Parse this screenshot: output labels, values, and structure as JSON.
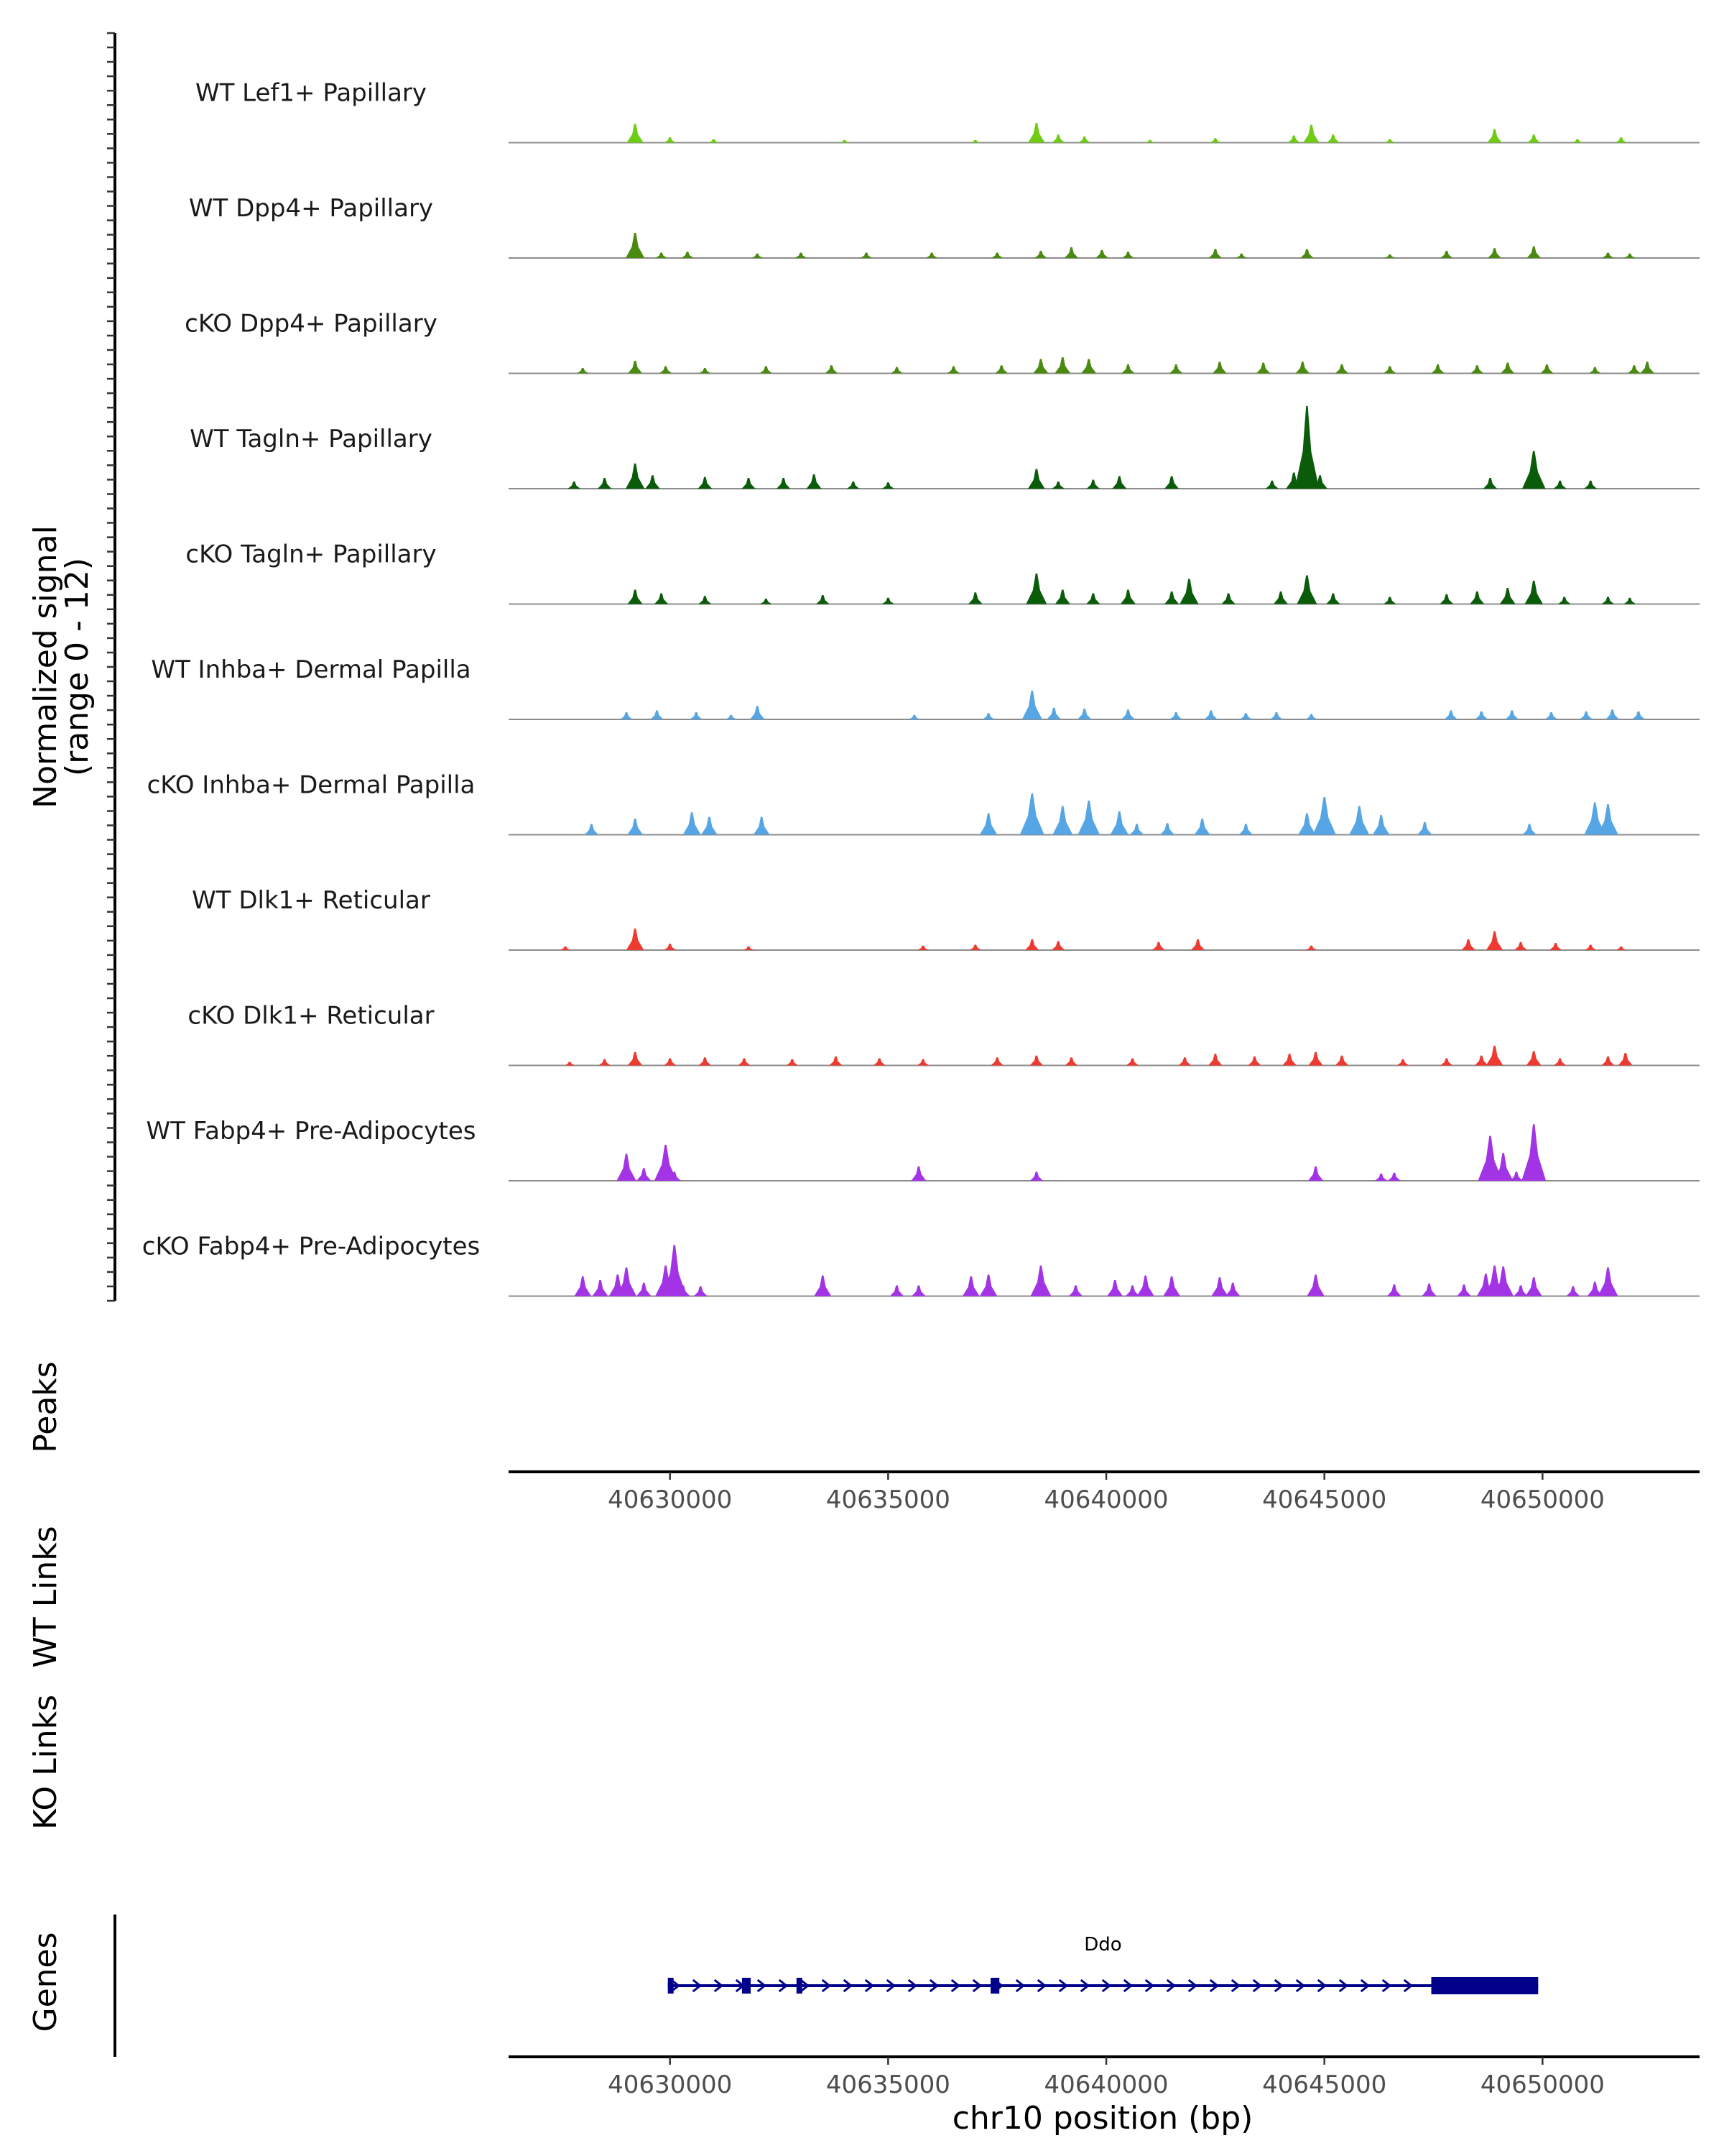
{
  "chart_data": {
    "type": "coverage",
    "chromosome": "chr10",
    "xlabel": "chr10 position (bp)",
    "xlim": [
      40626300,
      40653600
    ],
    "xticks": [
      40630000,
      40635000,
      40640000,
      40645000,
      40650000
    ],
    "xtick_labels": [
      "40630000",
      "40635000",
      "40640000",
      "40645000",
      "40650000"
    ],
    "ylabel_line1": "Normalized signal",
    "ylabel_line2": "(range 0 - 12)",
    "yrange": [
      0,
      12
    ],
    "tracks": [
      {
        "name": "WT Lef1+ Papillary",
        "color": "#6ecc14",
        "peaks": [
          [
            40629200,
            2.1
          ],
          [
            40630000,
            0.6
          ],
          [
            40631000,
            0.4
          ],
          [
            40634000,
            0.3
          ],
          [
            40637000,
            0.3
          ],
          [
            40638400,
            2.2
          ],
          [
            40638900,
            0.9
          ],
          [
            40639500,
            0.7
          ],
          [
            40641000,
            0.3
          ],
          [
            40642500,
            0.5
          ],
          [
            40644300,
            0.8
          ],
          [
            40644700,
            2.0
          ],
          [
            40645200,
            0.9
          ],
          [
            40646500,
            0.4
          ],
          [
            40648900,
            1.5
          ],
          [
            40649800,
            0.9
          ],
          [
            40650800,
            0.4
          ],
          [
            40651800,
            0.6
          ]
        ]
      },
      {
        "name": "WT Dpp4+ Papillary",
        "color": "#4a8a10",
        "peaks": [
          [
            40629200,
            2.8
          ],
          [
            40629800,
            0.6
          ],
          [
            40630400,
            0.7
          ],
          [
            40632000,
            0.5
          ],
          [
            40633000,
            0.6
          ],
          [
            40634500,
            0.6
          ],
          [
            40636000,
            0.6
          ],
          [
            40637500,
            0.6
          ],
          [
            40638500,
            0.8
          ],
          [
            40639200,
            1.2
          ],
          [
            40639900,
            0.9
          ],
          [
            40640500,
            0.7
          ],
          [
            40642500,
            1.0
          ],
          [
            40643100,
            0.5
          ],
          [
            40644600,
            1.0
          ],
          [
            40646500,
            0.4
          ],
          [
            40647800,
            0.8
          ],
          [
            40648900,
            1.1
          ],
          [
            40649800,
            1.3
          ],
          [
            40651500,
            0.6
          ],
          [
            40652000,
            0.5
          ]
        ]
      },
      {
        "name": "cKO Dpp4+ Papillary",
        "color": "#4a8a10",
        "peaks": [
          [
            40628000,
            0.6
          ],
          [
            40629200,
            1.4
          ],
          [
            40629900,
            0.8
          ],
          [
            40630800,
            0.6
          ],
          [
            40632200,
            0.8
          ],
          [
            40633700,
            0.9
          ],
          [
            40635200,
            0.7
          ],
          [
            40636500,
            0.8
          ],
          [
            40637600,
            0.9
          ],
          [
            40638500,
            1.6
          ],
          [
            40639000,
            1.8
          ],
          [
            40639600,
            1.6
          ],
          [
            40640500,
            1.0
          ],
          [
            40641600,
            1.0
          ],
          [
            40642600,
            1.3
          ],
          [
            40643600,
            1.2
          ],
          [
            40644500,
            1.3
          ],
          [
            40645400,
            1.0
          ],
          [
            40646500,
            0.8
          ],
          [
            40647600,
            1.0
          ],
          [
            40648500,
            0.9
          ],
          [
            40649200,
            1.2
          ],
          [
            40650100,
            1.0
          ],
          [
            40651200,
            0.7
          ],
          [
            40652100,
            0.9
          ],
          [
            40652400,
            1.3
          ]
        ]
      },
      {
        "name": "WT Tagln+ Papillary",
        "color": "#0a5c0a",
        "peaks": [
          [
            40627800,
            0.8
          ],
          [
            40628500,
            1.2
          ],
          [
            40629200,
            2.8
          ],
          [
            40629600,
            1.5
          ],
          [
            40630800,
            1.3
          ],
          [
            40631800,
            1.2
          ],
          [
            40632600,
            1.2
          ],
          [
            40633300,
            1.6
          ],
          [
            40634200,
            0.8
          ],
          [
            40635000,
            0.7
          ],
          [
            40638400,
            2.2
          ],
          [
            40638900,
            0.8
          ],
          [
            40639700,
            1.0
          ],
          [
            40640300,
            1.4
          ],
          [
            40641500,
            1.4
          ],
          [
            40643800,
            0.9
          ],
          [
            40644300,
            1.8
          ],
          [
            40644600,
            9.2
          ],
          [
            40644900,
            1.5
          ],
          [
            40648800,
            1.2
          ],
          [
            40649800,
            4.2
          ],
          [
            40650400,
            0.9
          ],
          [
            40651100,
            0.9
          ]
        ]
      },
      {
        "name": "cKO Tagln+ Papillary",
        "color": "#0a5c0a",
        "peaks": [
          [
            40629200,
            1.6
          ],
          [
            40629800,
            1.2
          ],
          [
            40630800,
            0.9
          ],
          [
            40632200,
            0.6
          ],
          [
            40633500,
            1.0
          ],
          [
            40635000,
            0.7
          ],
          [
            40637000,
            1.3
          ],
          [
            40638400,
            3.4
          ],
          [
            40639000,
            1.6
          ],
          [
            40639700,
            1.2
          ],
          [
            40640500,
            1.6
          ],
          [
            40641500,
            1.4
          ],
          [
            40641900,
            2.8
          ],
          [
            40642800,
            1.2
          ],
          [
            40644000,
            1.4
          ],
          [
            40644600,
            3.2
          ],
          [
            40645200,
            1.2
          ],
          [
            40646500,
            0.8
          ],
          [
            40647800,
            1.1
          ],
          [
            40648500,
            1.4
          ],
          [
            40649200,
            1.8
          ],
          [
            40649800,
            2.6
          ],
          [
            40650500,
            0.8
          ],
          [
            40651500,
            0.8
          ],
          [
            40652000,
            0.7
          ]
        ]
      },
      {
        "name": "WT Inhba+ Dermal Papilla",
        "color": "#56a5e4",
        "peaks": [
          [
            40629000,
            0.8
          ],
          [
            40629700,
            1.0
          ],
          [
            40630600,
            0.8
          ],
          [
            40631400,
            0.5
          ],
          [
            40632000,
            1.5
          ],
          [
            40635600,
            0.5
          ],
          [
            40637300,
            0.7
          ],
          [
            40638300,
            3.2
          ],
          [
            40638800,
            1.3
          ],
          [
            40639500,
            1.2
          ],
          [
            40640500,
            1.1
          ],
          [
            40641600,
            0.8
          ],
          [
            40642400,
            1.0
          ],
          [
            40643200,
            0.7
          ],
          [
            40643900,
            0.8
          ],
          [
            40644700,
            0.6
          ],
          [
            40647900,
            1.0
          ],
          [
            40648600,
            0.9
          ],
          [
            40649300,
            1.0
          ],
          [
            40650200,
            0.8
          ],
          [
            40651000,
            0.9
          ],
          [
            40651600,
            1.1
          ],
          [
            40652200,
            0.9
          ]
        ]
      },
      {
        "name": "cKO Inhba+ Dermal Papilla",
        "color": "#56a5e4",
        "peaks": [
          [
            40628200,
            1.2
          ],
          [
            40629200,
            1.8
          ],
          [
            40630500,
            2.5
          ],
          [
            40630900,
            2.0
          ],
          [
            40632100,
            2.0
          ],
          [
            40637300,
            2.4
          ],
          [
            40638300,
            4.6
          ],
          [
            40639000,
            3.2
          ],
          [
            40639600,
            3.8
          ],
          [
            40640300,
            2.6
          ],
          [
            40640700,
            1.2
          ],
          [
            40641400,
            1.3
          ],
          [
            40642200,
            1.8
          ],
          [
            40643200,
            1.2
          ],
          [
            40644600,
            2.4
          ],
          [
            40645000,
            4.2
          ],
          [
            40645800,
            3.2
          ],
          [
            40646300,
            2.2
          ],
          [
            40647300,
            1.4
          ],
          [
            40649700,
            1.2
          ],
          [
            40651200,
            3.6
          ],
          [
            40651500,
            3.4
          ]
        ]
      },
      {
        "name": "WT Dlk1+ Reticular",
        "color": "#ee3a30",
        "peaks": [
          [
            40627600,
            0.4
          ],
          [
            40629200,
            2.4
          ],
          [
            40630000,
            0.7
          ],
          [
            40631800,
            0.4
          ],
          [
            40635800,
            0.5
          ],
          [
            40637000,
            0.6
          ],
          [
            40638300,
            1.2
          ],
          [
            40638900,
            1.0
          ],
          [
            40641200,
            0.9
          ],
          [
            40642100,
            1.2
          ],
          [
            40644700,
            0.5
          ],
          [
            40648300,
            1.2
          ],
          [
            40648900,
            2.1
          ],
          [
            40649500,
            0.9
          ],
          [
            40650300,
            0.8
          ],
          [
            40651100,
            0.6
          ],
          [
            40651800,
            0.4
          ]
        ]
      },
      {
        "name": "cKO Dlk1+ Reticular",
        "color": "#ee3a30",
        "peaks": [
          [
            40627700,
            0.4
          ],
          [
            40628500,
            0.7
          ],
          [
            40629200,
            1.5
          ],
          [
            40630000,
            0.8
          ],
          [
            40630800,
            0.9
          ],
          [
            40631700,
            0.8
          ],
          [
            40632800,
            0.7
          ],
          [
            40633800,
            1.0
          ],
          [
            40634800,
            0.8
          ],
          [
            40635800,
            0.7
          ],
          [
            40637500,
            0.9
          ],
          [
            40638400,
            1.1
          ],
          [
            40639200,
            0.9
          ],
          [
            40640600,
            0.8
          ],
          [
            40641800,
            0.9
          ],
          [
            40642500,
            1.3
          ],
          [
            40643400,
            1.0
          ],
          [
            40644200,
            1.3
          ],
          [
            40644800,
            1.5
          ],
          [
            40645400,
            1.1
          ],
          [
            40646800,
            0.7
          ],
          [
            40647800,
            0.8
          ],
          [
            40648600,
            1.1
          ],
          [
            40648900,
            2.2
          ],
          [
            40649800,
            1.6
          ],
          [
            40650400,
            0.8
          ],
          [
            40651500,
            1.0
          ],
          [
            40651900,
            1.4
          ]
        ]
      },
      {
        "name": "WT Fabp4+ Pre-Adipocytes",
        "color": "#a334e6",
        "peaks": [
          [
            40629000,
            3.0
          ],
          [
            40629400,
            1.4
          ],
          [
            40629900,
            4.0
          ],
          [
            40630100,
            1.0
          ],
          [
            40635700,
            1.6
          ],
          [
            40638400,
            1.0
          ],
          [
            40644800,
            1.6
          ],
          [
            40646300,
            0.8
          ],
          [
            40646600,
            0.9
          ],
          [
            40648800,
            5.0
          ],
          [
            40649100,
            3.1
          ],
          [
            40649400,
            1.0
          ],
          [
            40649800,
            6.3
          ]
        ]
      },
      {
        "name": "cKO Fabp4+ Pre-Adipocytes",
        "color": "#a334e6",
        "peaks": [
          [
            40628000,
            2.2
          ],
          [
            40628400,
            1.8
          ],
          [
            40628800,
            2.4
          ],
          [
            40629000,
            3.2
          ],
          [
            40629400,
            1.5
          ],
          [
            40629900,
            3.4
          ],
          [
            40630100,
            5.7
          ],
          [
            40630300,
            1.2
          ],
          [
            40630700,
            1.1
          ],
          [
            40633500,
            2.3
          ],
          [
            40635200,
            1.2
          ],
          [
            40635700,
            1.2
          ],
          [
            40636900,
            2.2
          ],
          [
            40637300,
            2.4
          ],
          [
            40638500,
            3.4
          ],
          [
            40639300,
            1.2
          ],
          [
            40640200,
            1.8
          ],
          [
            40640600,
            1.2
          ],
          [
            40640900,
            2.3
          ],
          [
            40641500,
            2.2
          ],
          [
            40642600,
            2.1
          ],
          [
            40642900,
            1.5
          ],
          [
            40644800,
            2.4
          ],
          [
            40646600,
            1.3
          ],
          [
            40647400,
            1.4
          ],
          [
            40648200,
            1.3
          ],
          [
            40648700,
            2.5
          ],
          [
            40648900,
            3.4
          ],
          [
            40649100,
            3.3
          ],
          [
            40649500,
            1.2
          ],
          [
            40649800,
            2.1
          ],
          [
            40650700,
            1.1
          ],
          [
            40651200,
            1.6
          ],
          [
            40651500,
            3.2
          ]
        ]
      }
    ],
    "panels": {
      "peaks": "Peaks",
      "wt_links": "WT Links",
      "ko_links": "KO Links",
      "genes": "Genes"
    },
    "gene": {
      "name": "Ddo",
      "start": 40629950,
      "end": 40649900,
      "strand": "+",
      "exons": [
        [
          40629950,
          40630030
        ],
        [
          40631650,
          40631850
        ],
        [
          40632900,
          40633000
        ],
        [
          40637350,
          40637550
        ],
        [
          40647450,
          40649900
        ]
      ],
      "color": "#00008b"
    }
  }
}
